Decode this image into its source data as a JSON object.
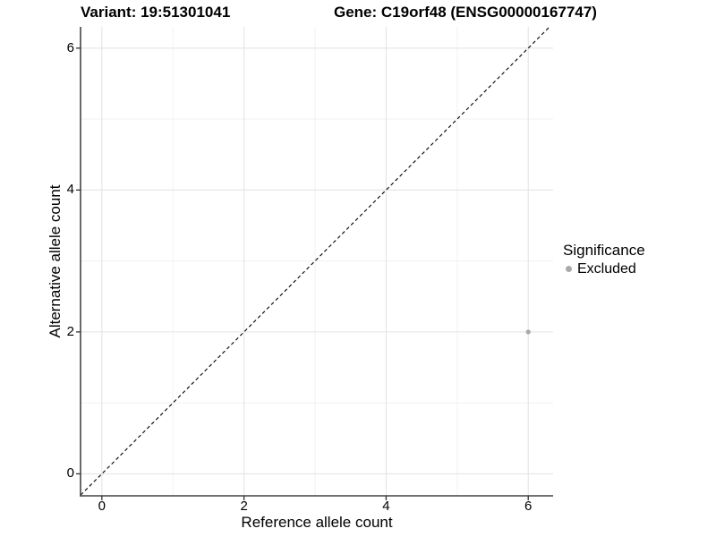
{
  "titles": {
    "variant": "Variant: 19:51301041",
    "gene": "Gene: C19orf48 (ENSG00000167747)"
  },
  "axes": {
    "x_label": "Reference allele count",
    "y_label": "Alternative allele count"
  },
  "legend": {
    "title": "Significance",
    "items": [
      {
        "label": "Excluded",
        "color": "#a9a9a9"
      }
    ]
  },
  "chart_data": {
    "type": "scatter",
    "title": "",
    "xlabel": "Reference allele count",
    "ylabel": "Alternative allele count",
    "xlim": [
      -0.3,
      6.35
    ],
    "ylim": [
      -0.31,
      6.3
    ],
    "x_ticks": [
      0,
      2,
      4,
      6
    ],
    "y_ticks": [
      0,
      2,
      4,
      6
    ],
    "x_minor_ticks": [
      1,
      3,
      5
    ],
    "y_minor_ticks": [
      1,
      3,
      5
    ],
    "grid": true,
    "legend_position": "right",
    "series": [
      {
        "name": "Excluded",
        "color": "#a9a9a9",
        "point_radius": 2.6,
        "points": [
          {
            "x": 6,
            "y": 2
          }
        ]
      }
    ],
    "reference_line": {
      "type": "identity",
      "style": "dashed",
      "color": "#000000",
      "dash": "4 3"
    },
    "colors": {
      "background": "#ffffff",
      "major_grid": "#e4e4e4",
      "minor_grid": "#f1f1f1",
      "axis_line": "#444444",
      "tick_mark": "#333333",
      "text": "#000000"
    }
  }
}
